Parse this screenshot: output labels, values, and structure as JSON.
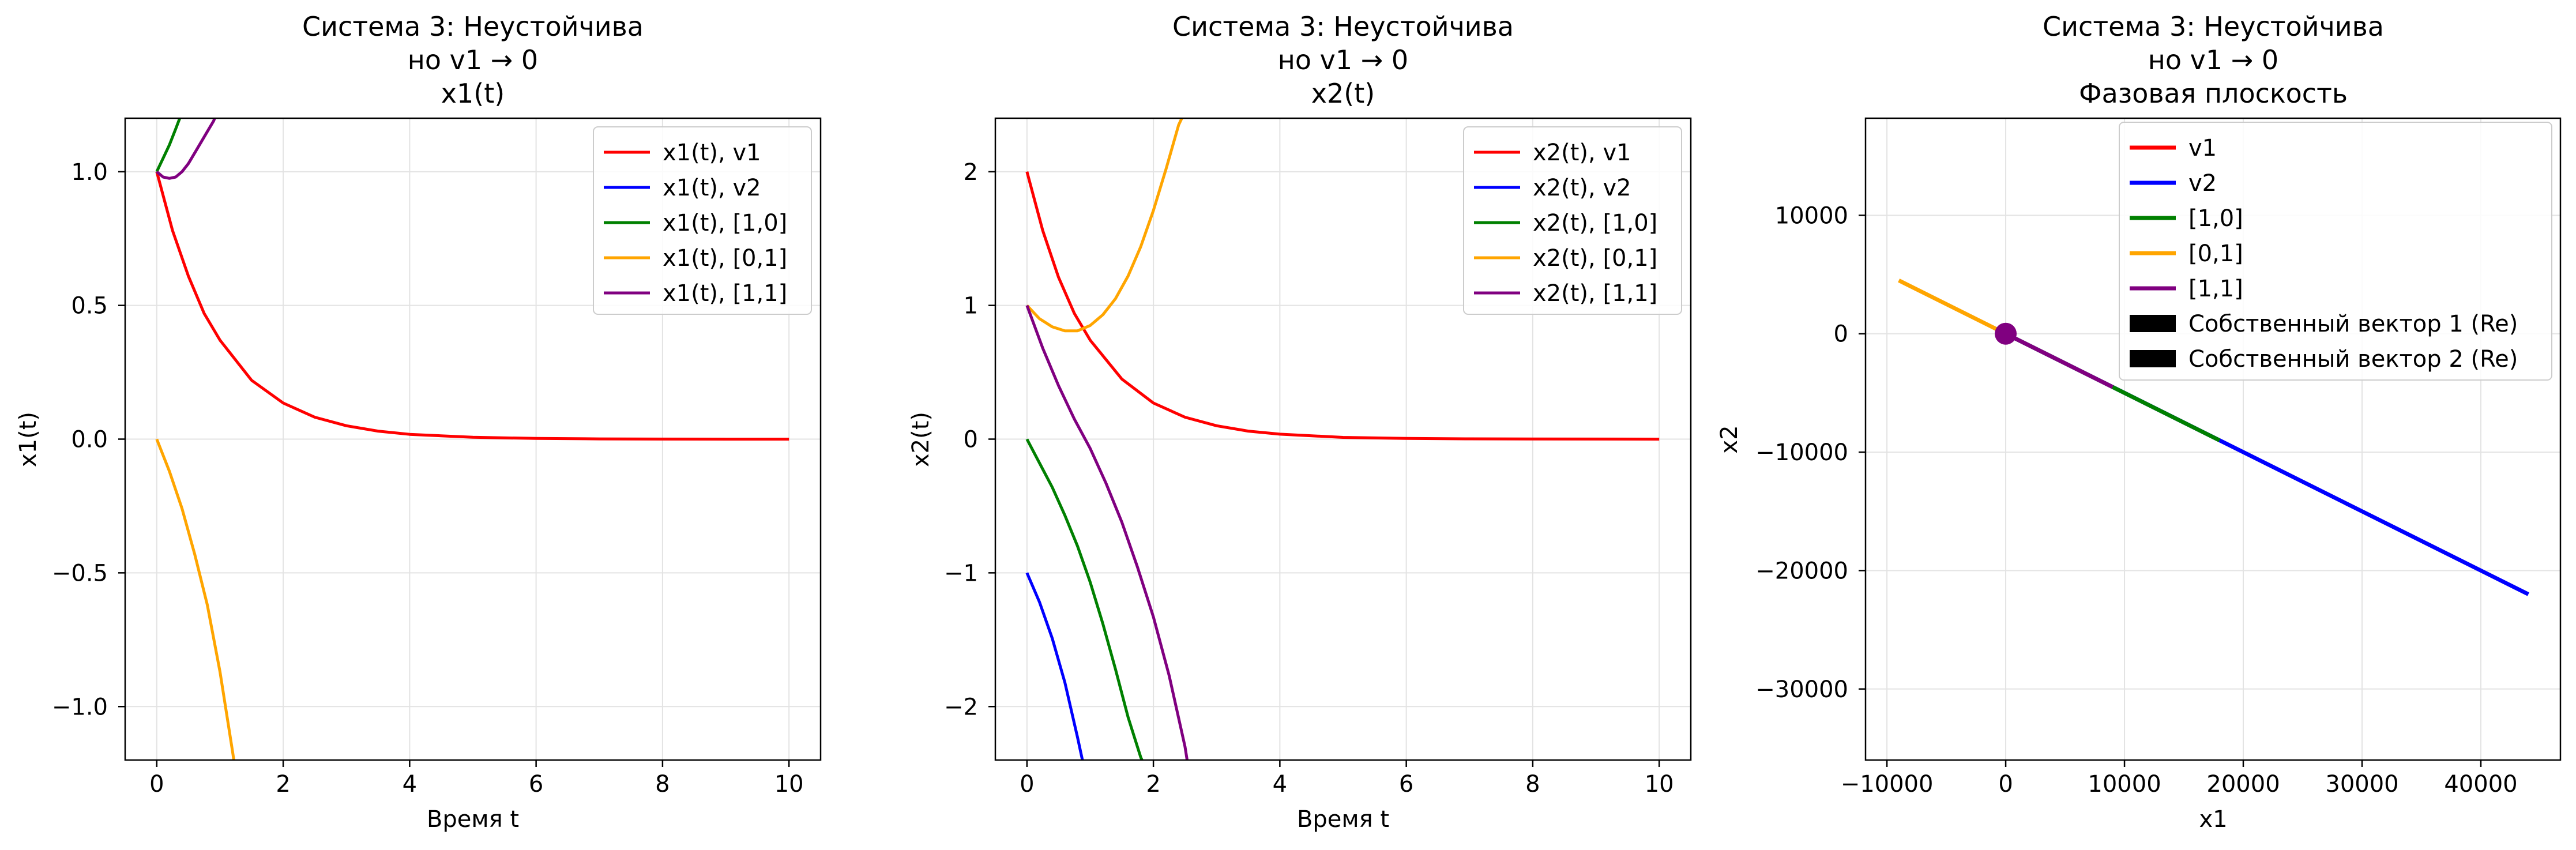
{
  "colors": {
    "v1": "#ff0000",
    "v2": "#0000ff",
    "b10": "#008000",
    "b01": "#ffa500",
    "b11": "#800080",
    "grid": "#e3e3e3",
    "axis": "#000000",
    "eigen": "#000000"
  },
  "chart_data": [
    {
      "type": "line",
      "title": [
        "Система 3: Неустойчива",
        "но v1 → 0",
        "x1(t)"
      ],
      "xlabel": "Время t",
      "ylabel": "x1(t)",
      "xlim": [
        -0.5,
        10.5
      ],
      "ylim": [
        -1.2,
        1.2
      ],
      "xticks": [
        0,
        2,
        4,
        6,
        8,
        10
      ],
      "yticks": [
        -1.0,
        -0.5,
        0.0,
        0.5,
        1.0
      ],
      "xtick_labels": [
        "0",
        "2",
        "4",
        "6",
        "8",
        "10"
      ],
      "ytick_labels": [
        "−1.0",
        "−0.5",
        "0.0",
        "0.5",
        "1.0"
      ],
      "grid": true,
      "legend": "top-right",
      "series": [
        {
          "name": "x1(t), v1",
          "color_key": "v1",
          "x": [
            0,
            0.25,
            0.5,
            0.75,
            1,
            1.5,
            2,
            2.5,
            3,
            3.5,
            4,
            5,
            6,
            7,
            8,
            10
          ],
          "y": [
            1,
            0.78,
            0.61,
            0.47,
            0.37,
            0.22,
            0.135,
            0.082,
            0.05,
            0.03,
            0.018,
            0.007,
            0.0025,
            0.0009,
            0.0003,
            0
          ]
        },
        {
          "name": "x1(t), v2",
          "color_key": "v2",
          "x": [],
          "y": []
        },
        {
          "name": "x1(t), [1,0]",
          "color_key": "b10",
          "x": [
            0,
            0.1,
            0.2,
            0.3,
            0.38
          ],
          "y": [
            1,
            1.05,
            1.1,
            1.16,
            1.21
          ]
        },
        {
          "name": "x1(t), [0,1]",
          "color_key": "b01",
          "x": [
            0,
            0.2,
            0.4,
            0.6,
            0.8,
            1.0,
            1.2,
            1.25
          ],
          "y": [
            0,
            -0.12,
            -0.26,
            -0.43,
            -0.62,
            -0.87,
            -1.17,
            -1.25
          ]
        },
        {
          "name": "x1(t), [1,1]",
          "color_key": "b11",
          "x": [
            0,
            0.1,
            0.2,
            0.3,
            0.4,
            0.5,
            0.6,
            0.7,
            0.8,
            0.9,
            0.95
          ],
          "y": [
            1,
            0.98,
            0.975,
            0.98,
            1.0,
            1.03,
            1.07,
            1.11,
            1.15,
            1.19,
            1.22
          ]
        }
      ]
    },
    {
      "type": "line",
      "title": [
        "Система 3: Неустойчива",
        "но v1 → 0",
        "x2(t)"
      ],
      "xlabel": "Время t",
      "ylabel": "x2(t)",
      "xlim": [
        -0.5,
        10.5
      ],
      "ylim": [
        -2.4,
        2.4
      ],
      "xticks": [
        0,
        2,
        4,
        6,
        8,
        10
      ],
      "yticks": [
        -2,
        -1,
        0,
        1,
        2
      ],
      "xtick_labels": [
        "0",
        "2",
        "4",
        "6",
        "8",
        "10"
      ],
      "ytick_labels": [
        "−2",
        "−1",
        "0",
        "1",
        "2"
      ],
      "grid": true,
      "legend": "top-right",
      "series": [
        {
          "name": "x2(t), v1",
          "color_key": "v1",
          "x": [
            0,
            0.25,
            0.5,
            0.75,
            1,
            1.5,
            2,
            2.5,
            3,
            3.5,
            4,
            5,
            6,
            7,
            8,
            10
          ],
          "y": [
            2,
            1.56,
            1.21,
            0.94,
            0.74,
            0.45,
            0.27,
            0.164,
            0.1,
            0.06,
            0.037,
            0.013,
            0.005,
            0.002,
            0.0007,
            0
          ]
        },
        {
          "name": "x2(t), v2",
          "color_key": "v2",
          "x": [
            0,
            0.2,
            0.4,
            0.6,
            0.8,
            0.9
          ],
          "y": [
            -1,
            -1.22,
            -1.49,
            -1.82,
            -2.23,
            -2.45
          ]
        },
        {
          "name": "x2(t), [1,0]",
          "color_key": "b10",
          "x": [
            0,
            0.2,
            0.4,
            0.6,
            0.8,
            1.0,
            1.2,
            1.4,
            1.6,
            1.8,
            1.87
          ],
          "y": [
            0,
            -0.18,
            -0.36,
            -0.57,
            -0.8,
            -1.07,
            -1.38,
            -1.72,
            -2.08,
            -2.38,
            -2.45
          ]
        },
        {
          "name": "x2(t), [0,1]",
          "color_key": "b01",
          "x": [
            0,
            0.2,
            0.4,
            0.6,
            0.8,
            1.0,
            1.2,
            1.4,
            1.6,
            1.8,
            2.0,
            2.2,
            2.4,
            2.5
          ],
          "y": [
            1,
            0.9,
            0.84,
            0.81,
            0.81,
            0.85,
            0.93,
            1.05,
            1.22,
            1.44,
            1.71,
            2.02,
            2.35,
            2.45
          ]
        },
        {
          "name": "x2(t), [1,1]",
          "color_key": "b11",
          "x": [
            0,
            0.25,
            0.5,
            0.75,
            1.0,
            1.25,
            1.5,
            1.75,
            2.0,
            2.25,
            2.5,
            2.55
          ],
          "y": [
            1,
            0.68,
            0.4,
            0.15,
            -0.07,
            -0.33,
            -0.62,
            -0.96,
            -1.33,
            -1.77,
            -2.3,
            -2.45
          ]
        }
      ]
    },
    {
      "type": "line",
      "title": [
        "Система 3: Неустойчива",
        "но v1 → 0",
        "Фазовая плоскость"
      ],
      "xlabel": "x1",
      "ylabel": "x2",
      "xlim": [
        -11800,
        46700
      ],
      "ylim": [
        -36000,
        18200
      ],
      "xticks": [
        -10000,
        0,
        10000,
        20000,
        30000,
        40000
      ],
      "yticks": [
        -30000,
        -20000,
        -10000,
        0,
        10000
      ],
      "xtick_labels": [
        "−10000",
        "0",
        "10000",
        "20000",
        "30000",
        "40000"
      ],
      "ytick_labels": [
        "−30000",
        "−20000",
        "−10000",
        "0",
        "10000"
      ],
      "grid": true,
      "legend": "top-center",
      "series": [
        {
          "name": "v1",
          "color_key": "v1",
          "x": [
            1,
            0
          ],
          "y": [
            2,
            0
          ]
        },
        {
          "name": "v2",
          "color_key": "v2",
          "x": [
            0,
            44000
          ],
          "y": [
            0,
            -22000
          ]
        },
        {
          "name": "[1,0]",
          "color_key": "b10",
          "x": [
            0,
            18000
          ],
          "y": [
            0,
            -9000
          ]
        },
        {
          "name": "[0,1]",
          "color_key": "b01",
          "x": [
            -9000,
            0
          ],
          "y": [
            4500,
            0
          ]
        },
        {
          "name": "[1,1]",
          "color_key": "b11",
          "x": [
            0,
            9000
          ],
          "y": [
            0,
            -4500
          ]
        }
      ],
      "origin_marker": {
        "x": 0,
        "y": 0,
        "color_key": "b11"
      },
      "legend_extra": [
        "Собственный вектор 1 (Re)",
        "Собственный вектор 2 (Re)"
      ]
    }
  ]
}
